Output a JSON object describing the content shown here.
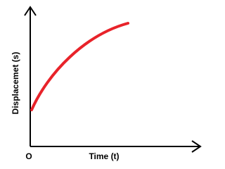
{
  "y_axis_label": "Displacemet (s)",
  "x_axis_label": "Time (t)",
  "origin_label": "O"
}
